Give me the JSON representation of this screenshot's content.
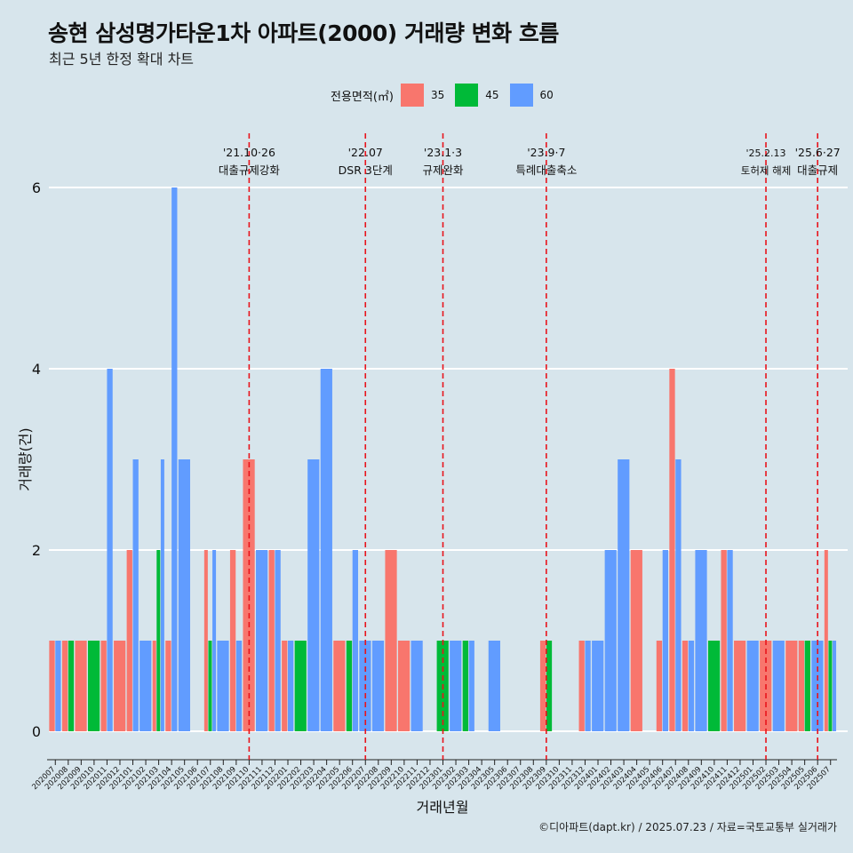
{
  "header": {
    "title": "송현 삼성명가타운1차 아파트(2000) 거래량 변화 흐름",
    "subtitle": "최근 5년 한정 확대 차트"
  },
  "legend": {
    "title": "전용면적(㎡)",
    "items": [
      {
        "label": "35",
        "color": "#F8766D"
      },
      {
        "label": "45",
        "color": "#00BA38"
      },
      {
        "label": "60",
        "color": "#619CFF"
      }
    ]
  },
  "caption": "©디아파트(dapt.kr) / 2025.07.23 / 자료=국토교통부 실거래가",
  "chart_data": {
    "type": "bar",
    "xlabel": "거래년월",
    "ylabel": "거래량(건)",
    "ylim": [
      0,
      6
    ],
    "yticks": [
      0,
      2,
      4,
      6
    ],
    "grid": true,
    "legend_position": "top",
    "categories": [
      "202007",
      "202008",
      "202009",
      "202010",
      "202011",
      "202012",
      "202101",
      "202102",
      "202103",
      "202104",
      "202105",
      "202106",
      "202107",
      "202108",
      "202109",
      "202110",
      "202111",
      "202112",
      "202201",
      "202202",
      "202203",
      "202204",
      "202205",
      "202206",
      "202207",
      "202208",
      "202209",
      "202210",
      "202211",
      "202212",
      "202301",
      "202302",
      "202303",
      "202304",
      "202305",
      "202306",
      "202307",
      "202308",
      "202309",
      "202310",
      "202311",
      "202312",
      "202401",
      "202402",
      "202403",
      "202404",
      "202405",
      "202406",
      "202407",
      "202408",
      "202409",
      "202410",
      "202411",
      "202412",
      "202501",
      "202502",
      "202503",
      "202504",
      "202505",
      "202506",
      "202507"
    ],
    "series": [
      {
        "name": "35",
        "color": "#F8766D",
        "values": [
          1,
          1,
          1,
          0,
          1,
          1,
          2,
          0,
          1,
          1,
          0,
          0,
          2,
          0,
          2,
          3,
          0,
          2,
          1,
          0,
          0,
          0,
          1,
          0,
          0,
          0,
          2,
          1,
          0,
          0,
          0,
          0,
          0,
          0,
          0,
          0,
          0,
          0,
          1,
          0,
          0,
          1,
          0,
          0,
          0,
          2,
          0,
          1,
          4,
          1,
          0,
          0,
          2,
          1,
          0,
          1,
          0,
          1,
          1,
          0,
          2
        ]
      },
      {
        "name": "45",
        "color": "#00BA38",
        "values": [
          0,
          1,
          0,
          1,
          0,
          0,
          0,
          0,
          2,
          0,
          0,
          0,
          1,
          0,
          0,
          0,
          0,
          0,
          0,
          1,
          0,
          0,
          0,
          1,
          0,
          0,
          0,
          0,
          0,
          0,
          1,
          0,
          1,
          0,
          0,
          0,
          0,
          0,
          1,
          0,
          0,
          0,
          0,
          0,
          0,
          0,
          0,
          0,
          0,
          0,
          0,
          1,
          0,
          0,
          0,
          0,
          0,
          0,
          1,
          0,
          1
        ]
      },
      {
        "name": "60",
        "color": "#619CFF",
        "values": [
          1,
          0,
          0,
          0,
          4,
          0,
          3,
          1,
          3,
          6,
          3,
          0,
          2,
          1,
          1,
          0,
          2,
          2,
          1,
          0,
          3,
          4,
          0,
          2,
          1,
          1,
          0,
          0,
          1,
          0,
          0,
          1,
          1,
          0,
          1,
          0,
          0,
          0,
          0,
          0,
          0,
          1,
          1,
          2,
          3,
          0,
          0,
          2,
          3,
          1,
          2,
          0,
          2,
          0,
          1,
          0,
          1,
          0,
          0,
          1,
          1
        ]
      }
    ],
    "annotations": [
      {
        "month": "202110",
        "date": "'21.10·26",
        "label": "대출규제강화"
      },
      {
        "month": "202207",
        "date": "'22.07",
        "label": "DSR 3단계"
      },
      {
        "month": "202301",
        "date": "'23.1·3",
        "label": "규제완화"
      },
      {
        "month": "202309",
        "date": "'23.9·7",
        "label": "특례대출축소"
      },
      {
        "month": "202502",
        "date": "'25.2.13",
        "label": "토허제 해제"
      },
      {
        "month": "202506",
        "date": "'25.6·27",
        "label": "대출규제"
      }
    ]
  }
}
